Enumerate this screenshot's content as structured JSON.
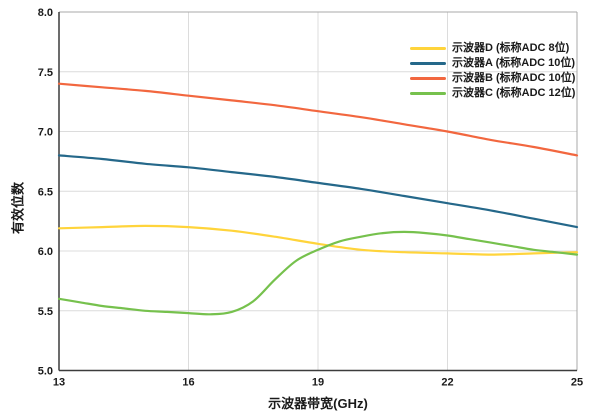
{
  "chart_data": {
    "type": "line",
    "title": "",
    "xlabel": "示波器带宽(GHz)",
    "ylabel": "有效位数",
    "xlim": [
      13,
      25
    ],
    "ylim": [
      5.0,
      8.0
    ],
    "xticks": [
      13,
      16,
      19,
      22,
      25
    ],
    "xtick_labels": [
      "13",
      "16",
      "19",
      "22",
      "25"
    ],
    "yticks": [
      5.0,
      5.5,
      6.0,
      6.5,
      7.0,
      7.5,
      8.0
    ],
    "ytick_labels": [
      "5.0",
      "5.5",
      "6.0",
      "6.5",
      "7.0",
      "7.5",
      "8.0"
    ],
    "grid": true,
    "legend_position": "top-right-inside",
    "colors": {
      "grid": "#dcdcdc",
      "border": "#a8a8a8",
      "axis": "#3c3c3c",
      "text": "#1a1a1a"
    },
    "series": [
      {
        "name": "示波器D (标称ADC 8位)",
        "color": "#FFD43B",
        "x": [
          13,
          14,
          15,
          16,
          17,
          18,
          19,
          20,
          21,
          22,
          23,
          24,
          25
        ],
        "values": [
          6.19,
          6.2,
          6.21,
          6.2,
          6.17,
          6.12,
          6.06,
          6.01,
          5.99,
          5.98,
          5.97,
          5.98,
          5.99
        ]
      },
      {
        "name": "示波器A (标称ADC 10位)",
        "color": "#25688A",
        "x": [
          13,
          14,
          15,
          16,
          17,
          18,
          19,
          20,
          21,
          22,
          23,
          24,
          25
        ],
        "values": [
          6.8,
          6.77,
          6.73,
          6.7,
          6.66,
          6.62,
          6.57,
          6.52,
          6.46,
          6.4,
          6.34,
          6.27,
          6.2
        ]
      },
      {
        "name": "示波器B (标称ADC 10位)",
        "color": "#F2673F",
        "x": [
          13,
          14,
          15,
          16,
          17,
          18,
          19,
          20,
          21,
          22,
          23,
          24,
          25
        ],
        "values": [
          7.4,
          7.37,
          7.34,
          7.3,
          7.26,
          7.22,
          7.17,
          7.12,
          7.06,
          7.0,
          6.93,
          6.87,
          6.8
        ]
      },
      {
        "name": "示波器C (标称ADC 12位)",
        "color": "#76C14D",
        "x": [
          13,
          13.5,
          14,
          14.5,
          15,
          15.5,
          16,
          16.5,
          17,
          17.5,
          18,
          18.5,
          19,
          19.5,
          20,
          20.5,
          21,
          21.5,
          22,
          22.5,
          23,
          23.5,
          24,
          24.5,
          25
        ],
        "values": [
          5.6,
          5.57,
          5.54,
          5.52,
          5.5,
          5.49,
          5.48,
          5.47,
          5.49,
          5.58,
          5.76,
          5.92,
          6.01,
          6.08,
          6.12,
          6.15,
          6.16,
          6.15,
          6.13,
          6.1,
          6.07,
          6.04,
          6.01,
          5.99,
          5.97
        ]
      }
    ]
  }
}
